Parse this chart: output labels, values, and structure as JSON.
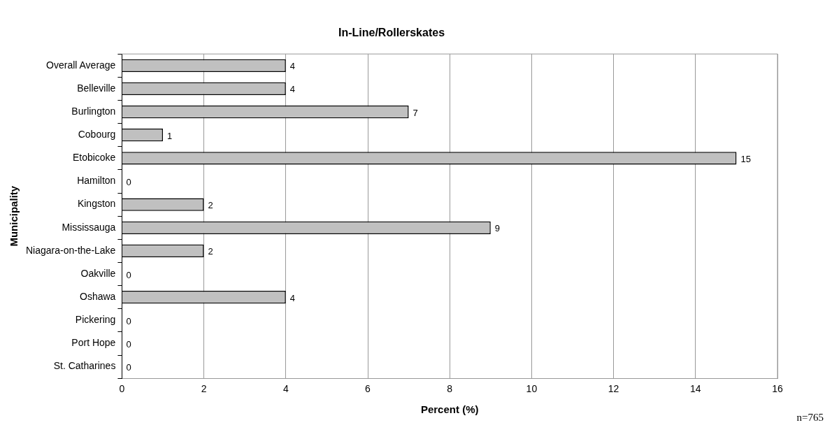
{
  "chart_data": {
    "type": "bar",
    "orientation": "horizontal",
    "title": "In-Line/Rollerskates",
    "xlabel": "Percent (%)",
    "ylabel": "Municipality",
    "categories": [
      "Overall Average",
      "Belleville",
      "Burlington",
      "Cobourg",
      "Etobicoke",
      "Hamilton",
      "Kingston",
      "Mississauga",
      "Niagara-on-the-Lake",
      "Oakville",
      "Oshawa",
      "Pickering",
      "Port Hope",
      "St. Catharines"
    ],
    "values": [
      4,
      4,
      7,
      1,
      15,
      0,
      2,
      9,
      2,
      0,
      4,
      0,
      0,
      0
    ],
    "color": "#c0c0c0",
    "xlim": [
      0,
      16
    ],
    "xticks": [
      0,
      2,
      4,
      6,
      8,
      10,
      12,
      14,
      16
    ],
    "grid": "x",
    "data_labels": true,
    "annotations": [
      "n=765"
    ]
  }
}
